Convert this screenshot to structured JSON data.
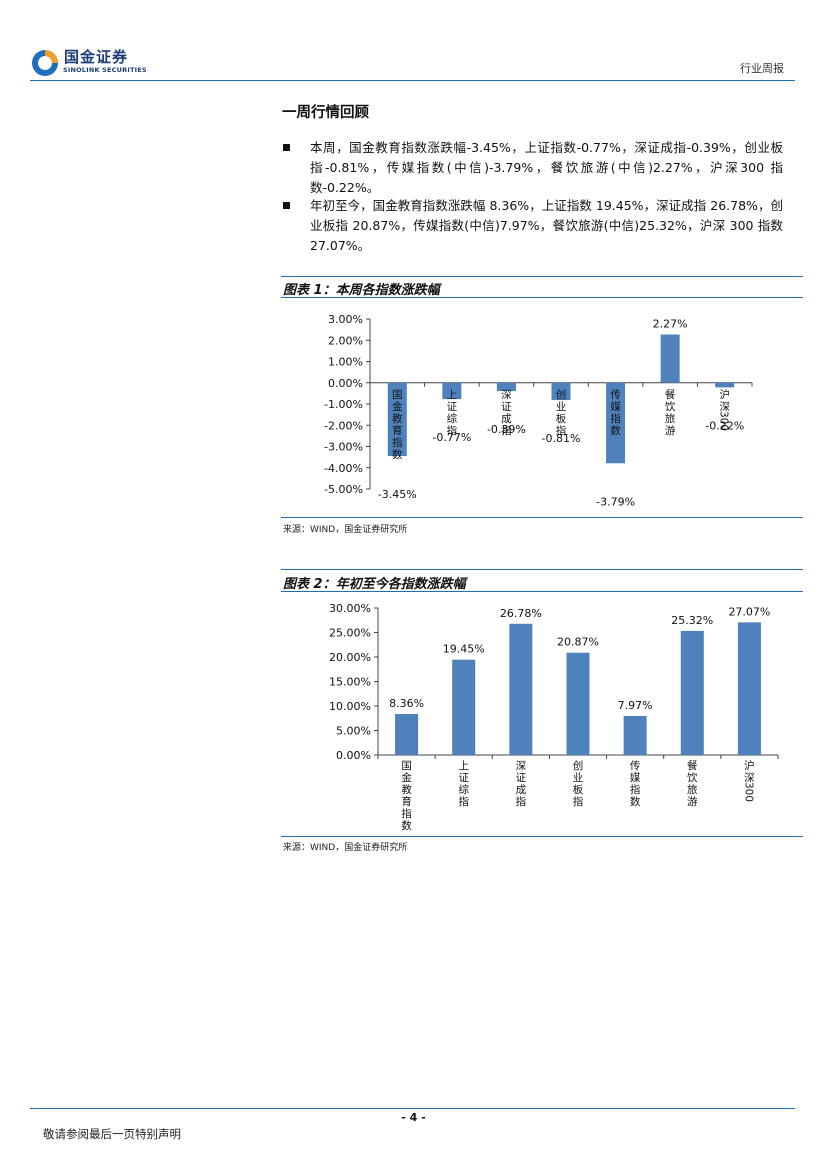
{
  "header": {
    "logo_cn": "国金证券",
    "logo_en": "SINOLINK SECURITIES",
    "report_type": "行业周报"
  },
  "section": {
    "title": "一周行情回顾",
    "bullets": [
      "本周，国金教育指数涨跌幅-3.45%，上证指数-0.77%，深证成指-0.39%，创业板指-0.81%，传媒指数(中信)-3.79%，餐饮旅游(中信)2.27%，沪深300 指数-0.22%。",
      "年初至今，国金教育指数涨跌幅 8.36%，上证指数 19.45%，深证成指 26.78%，创业板指 20.87%，传媒指数(中信)7.97%，餐饮旅游(中信)25.32%，沪深 300 指数 27.07%。"
    ]
  },
  "figures": [
    {
      "title": "图表 1：本周各指数涨跌幅",
      "source": "来源：WIND，国金证券研究所"
    },
    {
      "title": "图表 2：年初至今各指数涨跌幅",
      "source": "来源：WIND，国金证券研究所"
    }
  ],
  "chart_data": [
    {
      "type": "bar",
      "categories": [
        "国金教育指数",
        "上证综指",
        "深证成指",
        "创业板指",
        "传媒指数",
        "餐饮旅游",
        "沪深300"
      ],
      "values": [
        -3.45,
        -0.77,
        -0.39,
        -0.81,
        -3.79,
        2.27,
        -0.22
      ],
      "value_labels": [
        "-3.45%",
        "-0.77%",
        "-0.39%",
        "-0.81%",
        "-3.79%",
        "2.27%",
        "-0.22%"
      ],
      "ylim": [
        -5,
        3
      ],
      "yticks": [
        "3.00%",
        "2.00%",
        "1.00%",
        "0.00%",
        "-1.00%",
        "-2.00%",
        "-3.00%",
        "-4.00%",
        "-5.00%"
      ],
      "color": "#4f81bd",
      "grid": false,
      "legend": "none"
    },
    {
      "type": "bar",
      "categories": [
        "国金教育指数",
        "上证综指",
        "深证成指",
        "创业板指",
        "传媒指数",
        "餐饮旅游",
        "沪深300"
      ],
      "values": [
        8.36,
        19.45,
        26.78,
        20.87,
        7.97,
        25.32,
        27.07
      ],
      "value_labels": [
        "8.36%",
        "19.45%",
        "26.78%",
        "20.87%",
        "7.97%",
        "25.32%",
        "27.07%"
      ],
      "ylim": [
        0,
        30
      ],
      "yticks": [
        "30.00%",
        "25.00%",
        "20.00%",
        "15.00%",
        "10.00%",
        "5.00%",
        "0.00%"
      ],
      "color": "#4f81bd",
      "grid": false,
      "legend": "none"
    }
  ],
  "footer": {
    "page_number": "- 4 -",
    "disclaimer": "敬请参阅最后一页特别声明"
  }
}
